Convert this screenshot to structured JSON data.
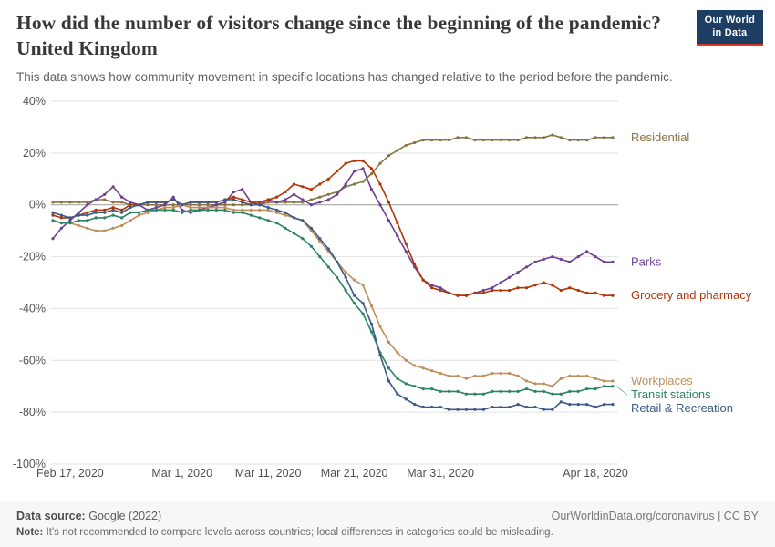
{
  "header": {
    "title": "How did the number of visitors change since the beginning of the pandemic? United Kingdom",
    "subtitle": "This data shows how community movement in specific locations has changed relative to the period before the pandemic.",
    "logo": {
      "line1": "Our World",
      "line2": "in Data",
      "bg": "#1d3d63",
      "accent": "#d7372a"
    }
  },
  "chart_data": {
    "type": "line",
    "title": "How did the number of visitors change since the beginning of the pandemic? United Kingdom",
    "x_start_date": "2020-02-15",
    "x_unit": "days",
    "ylim": [
      -100,
      40
    ],
    "grid": true,
    "legend_position": "right-of-line-ends",
    "y_ticks": [
      {
        "label": "40%",
        "value": 40
      },
      {
        "label": "20%",
        "value": 20
      },
      {
        "label": "0%",
        "value": 0
      },
      {
        "label": "-20%",
        "value": -20
      },
      {
        "label": "-40%",
        "value": -40
      },
      {
        "label": "-60%",
        "value": -60
      },
      {
        "label": "-80%",
        "value": -80
      },
      {
        "label": "-100%",
        "value": -100
      }
    ],
    "x_ticks": [
      {
        "label": "Feb 17, 2020",
        "day": 2
      },
      {
        "label": "Mar 1, 2020",
        "day": 15
      },
      {
        "label": "Mar 11, 2020",
        "day": 25
      },
      {
        "label": "Mar 21, 2020",
        "day": 35
      },
      {
        "label": "Mar 31, 2020",
        "day": 45
      },
      {
        "label": "Apr 18, 2020",
        "day": 63
      }
    ],
    "series": [
      {
        "name": "Residential",
        "color": "#8a7343",
        "values": [
          1,
          1,
          1,
          1,
          1,
          2,
          2,
          1,
          1,
          0,
          0,
          0,
          0,
          0,
          0,
          0,
          0,
          0,
          0,
          0,
          0,
          0,
          0,
          0,
          0,
          1,
          1,
          1,
          1,
          1,
          2,
          3,
          4,
          5,
          7,
          8,
          9,
          12,
          16,
          19,
          21,
          23,
          24,
          25,
          25,
          25,
          25,
          26,
          26,
          25,
          25,
          25,
          25,
          25,
          25,
          26,
          26,
          26,
          27,
          26,
          25,
          25,
          25,
          26,
          26,
          26
        ]
      },
      {
        "name": "Parks",
        "color": "#6d3e91",
        "values": [
          -13,
          -9,
          -6,
          -3,
          0,
          2,
          4,
          7,
          3,
          1,
          0,
          -2,
          -1,
          0,
          3,
          -2,
          -3,
          -2,
          -1,
          0,
          1,
          5,
          6,
          1,
          0,
          2,
          1,
          2,
          4,
          2,
          0,
          1,
          2,
          4,
          8,
          13,
          14,
          6,
          0,
          -6,
          -12,
          -18,
          -24,
          -29,
          -31,
          -32,
          -34,
          -35,
          -35,
          -34,
          -33,
          -32,
          -30,
          -28,
          -26,
          -24,
          -22,
          -21,
          -20,
          -21,
          -22,
          -20,
          -18,
          -20,
          -22,
          -22
        ]
      },
      {
        "name": "Grocery and pharmacy",
        "color": "#b13507",
        "values": [
          -4,
          -5,
          -5,
          -4,
          -3,
          -2,
          -2,
          -1,
          -2,
          0,
          0,
          1,
          1,
          1,
          2,
          0,
          1,
          1,
          1,
          1,
          2,
          3,
          2,
          1,
          1,
          2,
          3,
          5,
          8,
          7,
          6,
          8,
          10,
          13,
          16,
          17,
          17,
          14,
          8,
          1,
          -7,
          -15,
          -23,
          -29,
          -32,
          -33,
          -34,
          -35,
          -35,
          -34,
          -34,
          -33,
          -33,
          -33,
          -32,
          -32,
          -31,
          -30,
          -31,
          -33,
          -32,
          -33,
          -34,
          -34,
          -35,
          -35
        ]
      },
      {
        "name": "Workplaces",
        "color": "#bf8e5a",
        "values": [
          -6,
          -7,
          -7,
          -8,
          -9,
          -10,
          -10,
          -9,
          -8,
          -6,
          -4,
          -3,
          -2,
          -1,
          -1,
          0,
          -1,
          -1,
          -1,
          -1,
          -1,
          -2,
          -2,
          -2,
          -2,
          -2,
          -3,
          -4,
          -5,
          -6,
          -10,
          -14,
          -18,
          -22,
          -26,
          -29,
          -31,
          -39,
          -47,
          -53,
          -57,
          -60,
          -62,
          -63,
          -64,
          -65,
          -66,
          -66,
          -67,
          -66,
          -66,
          -65,
          -65,
          -65,
          -66,
          -68,
          -69,
          -69,
          -70,
          -67,
          -66,
          -66,
          -66,
          -67,
          -68,
          -68
        ]
      },
      {
        "name": "Transit stations",
        "color": "#2c8465",
        "values": [
          -6,
          -7,
          -7,
          -6,
          -6,
          -5,
          -5,
          -4,
          -5,
          -3,
          -3,
          -2,
          -2,
          -2,
          -2,
          -3,
          -2,
          -2,
          -2,
          -2,
          -2,
          -3,
          -3,
          -4,
          -5,
          -6,
          -7,
          -9,
          -11,
          -13,
          -16,
          -20,
          -24,
          -28,
          -33,
          -38,
          -42,
          -49,
          -57,
          -63,
          -67,
          -69,
          -70,
          -71,
          -71,
          -72,
          -72,
          -72,
          -73,
          -73,
          -73,
          -72,
          -72,
          -72,
          -72,
          -71,
          -72,
          -72,
          -73,
          -73,
          -72,
          -72,
          -71,
          -71,
          -70,
          -70
        ]
      },
      {
        "name": "Retail & Recreation",
        "color": "#3b5a86",
        "values": [
          -3,
          -4,
          -5,
          -4,
          -4,
          -3,
          -3,
          -2,
          -3,
          -1,
          0,
          1,
          1,
          1,
          2,
          0,
          1,
          1,
          1,
          1,
          2,
          2,
          1,
          0,
          0,
          -1,
          -2,
          -3,
          -5,
          -6,
          -9,
          -13,
          -17,
          -22,
          -28,
          -35,
          -38,
          -46,
          -58,
          -68,
          -73,
          -75,
          -77,
          -78,
          -78,
          -78,
          -79,
          -79,
          -79,
          -79,
          -79,
          -78,
          -78,
          -78,
          -77,
          -78,
          -78,
          -79,
          -79,
          -76,
          -77,
          -77,
          -77,
          -78,
          -77,
          -77
        ]
      }
    ]
  },
  "footer": {
    "source_label": "Data source:",
    "source_text": "Google (2022)",
    "link_text": "OurWorldinData.org/coronavirus | CC BY",
    "note_label": "Note:",
    "note_text": "It's not recommended to compare levels across countries; local differences in categories could be misleading."
  }
}
